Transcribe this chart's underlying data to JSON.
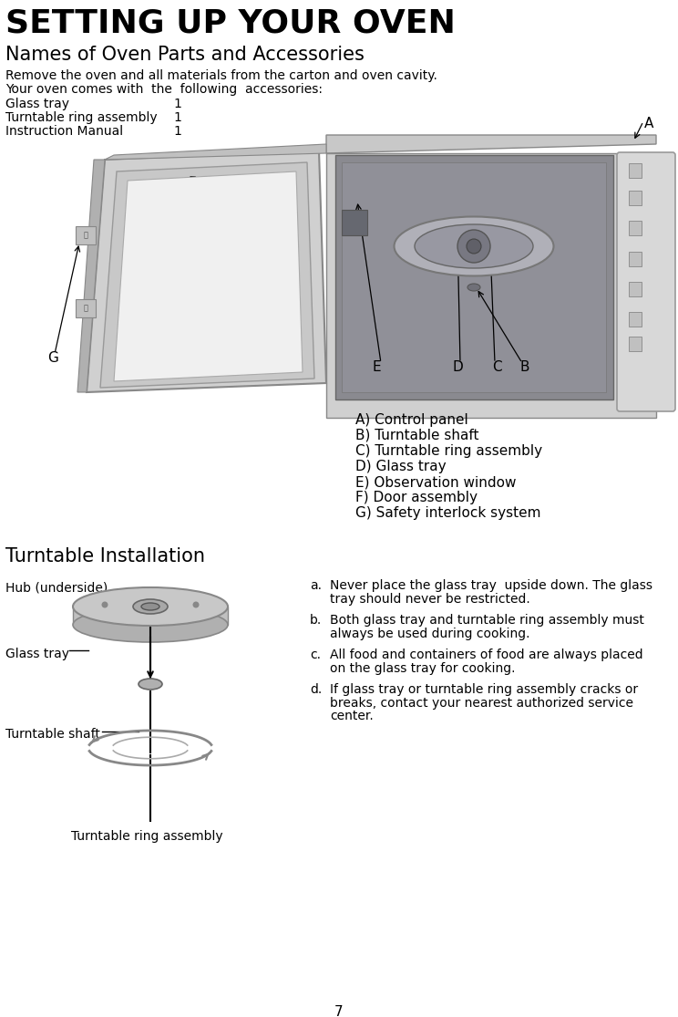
{
  "title": "SETTING UP YOUR OVEN",
  "subtitle": "Names of Oven Parts and Accessories",
  "intro_line1": "Remove the oven and all materials from the carton and oven cavity.",
  "intro_line2": "Your oven comes with  the  following  accessories:",
  "accessories": [
    [
      "Glass tray",
      "1"
    ],
    [
      "Turntable ring assembly",
      "1"
    ],
    [
      "Instruction Manual",
      "1"
    ]
  ],
  "parts_list": [
    "A) Control panel",
    "B) Turntable shaft",
    "C) Turntable ring assembly",
    "D) Glass tray",
    "E) Observation window",
    "F) Door assembly",
    "G) Safety interlock system"
  ],
  "section2_title": "Turntable Installation",
  "page_number": "7",
  "bg_color": "#ffffff",
  "text_color": "#000000"
}
